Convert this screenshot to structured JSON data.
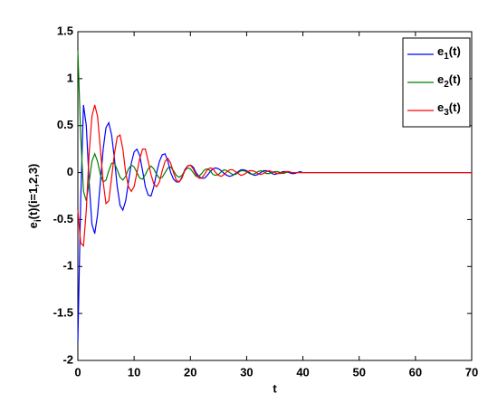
{
  "chart_data": {
    "type": "line",
    "x_label": "t",
    "y_label": "ei(t)(i=1,2,3)",
    "xlim": [
      0,
      70
    ],
    "xticks": [
      0,
      10,
      20,
      30,
      40,
      50,
      60,
      70
    ],
    "ylim": [
      -2,
      1.5
    ],
    "yticks": [
      -2,
      -1.5,
      -1,
      -0.5,
      0,
      0.5,
      1,
      1.5
    ],
    "legend": "upper-right",
    "x": [
      0,
      0.5,
      1,
      1.5,
      2,
      2.5,
      3,
      3.5,
      4,
      4.5,
      5,
      5.5,
      6,
      6.5,
      7,
      7.5,
      8,
      8.5,
      9,
      9.5,
      10,
      10.5,
      11,
      11.5,
      12,
      12.5,
      13,
      13.5,
      14,
      14.5,
      15,
      15.5,
      16,
      16.5,
      17,
      17.5,
      18,
      18.5,
      19,
      19.5,
      20,
      20.5,
      21,
      21.5,
      22,
      22.5,
      23,
      23.5,
      24,
      24.5,
      25,
      25.5,
      26,
      26.5,
      27,
      27.5,
      28,
      28.5,
      29,
      29.5,
      30,
      30.5,
      31,
      31.5,
      32,
      32.5,
      33,
      33.5,
      34,
      34.5,
      35,
      35.5,
      36,
      36.5,
      37,
      37.5,
      38,
      38.5,
      39,
      39.5,
      40,
      45,
      50,
      55,
      60,
      65,
      70
    ],
    "series": [
      {
        "name": "e1(t)",
        "color": "#0000ff",
        "values": [
          -1.8,
          -0.3,
          0.72,
          0.5,
          -0.1,
          -0.55,
          -0.65,
          -0.45,
          -0.1,
          0.25,
          0.48,
          0.53,
          0.4,
          0.15,
          -0.15,
          -0.35,
          -0.4,
          -0.3,
          -0.1,
          0.1,
          0.22,
          0.25,
          0.18,
          0.02,
          -0.15,
          -0.24,
          -0.25,
          -0.15,
          0,
          0.12,
          0.19,
          0.2,
          0.12,
          0,
          -0.07,
          -0.1,
          -0.1,
          -0.05,
          0.03,
          0.07,
          0.08,
          0.06,
          0,
          -0.04,
          -0.06,
          -0.06,
          -0.03,
          0.01,
          0.04,
          0.05,
          0.04,
          0.02,
          -0.01,
          -0.03,
          -0.04,
          -0.03,
          -0.01,
          0.01,
          0.03,
          0.03,
          0.02,
          0,
          -0.02,
          -0.03,
          -0.02,
          0,
          0.02,
          0.02,
          0.01,
          -0.01,
          -0.02,
          -0.01,
          0,
          0.01,
          0.01,
          0,
          -0.01,
          -0.01,
          0,
          0.01,
          0,
          0,
          0,
          0,
          0,
          0,
          0
        ]
      },
      {
        "name": "e2(t)",
        "color": "#008000",
        "values": [
          1.3,
          0.4,
          -0.2,
          -0.3,
          -0.1,
          0.12,
          0.2,
          0.12,
          -0.02,
          -0.1,
          -0.08,
          0.02,
          0.1,
          0.1,
          0.03,
          -0.05,
          -0.08,
          -0.04,
          0.04,
          0.08,
          0.06,
          0,
          -0.06,
          -0.07,
          -0.02,
          0.04,
          0.07,
          0.04,
          -0.02,
          -0.06,
          -0.05,
          0,
          0.05,
          0.06,
          0.02,
          -0.03,
          -0.05,
          -0.03,
          0.02,
          0.05,
          0.04,
          0,
          -0.04,
          -0.04,
          -0.01,
          0.03,
          0.04,
          0.02,
          -0.02,
          -0.03,
          -0.02,
          0.01,
          0.03,
          0.02,
          0,
          -0.02,
          -0.02,
          0,
          0.02,
          0.02,
          0.01,
          -0.01,
          -0.02,
          -0.01,
          0.01,
          0.02,
          0.01,
          -0.01,
          -0.01,
          0,
          0.01,
          0.01,
          0,
          -0.01,
          0,
          0.01,
          0,
          0,
          0,
          0,
          0,
          0,
          0,
          0,
          0,
          0,
          0
        ]
      },
      {
        "name": "e3(t)",
        "color": "#ff0000",
        "values": [
          -0.4,
          -0.75,
          -0.78,
          -0.4,
          0.2,
          0.6,
          0.72,
          0.6,
          0.25,
          -0.1,
          -0.33,
          -0.3,
          -0.05,
          0.2,
          0.38,
          0.4,
          0.25,
          0,
          -0.15,
          -0.2,
          -0.15,
          0,
          0.15,
          0.25,
          0.25,
          0.12,
          -0.02,
          -0.12,
          -0.15,
          -0.1,
          0.02,
          0.12,
          0.15,
          0.1,
          0,
          -0.08,
          -0.1,
          -0.06,
          0.02,
          0.07,
          0.08,
          0.04,
          -0.02,
          -0.06,
          -0.06,
          -0.02,
          0.03,
          0.05,
          0.04,
          0,
          -0.03,
          -0.04,
          -0.02,
          0.01,
          0.03,
          0.03,
          0.01,
          -0.01,
          -0.03,
          -0.02,
          0,
          0.02,
          0.02,
          0.01,
          -0.01,
          -0.02,
          -0.01,
          0.01,
          0.02,
          0.01,
          0,
          -0.01,
          -0.01,
          0,
          0.01,
          0.01,
          0,
          0,
          0,
          0,
          0,
          0,
          0,
          0,
          0,
          0,
          0
        ]
      }
    ]
  }
}
